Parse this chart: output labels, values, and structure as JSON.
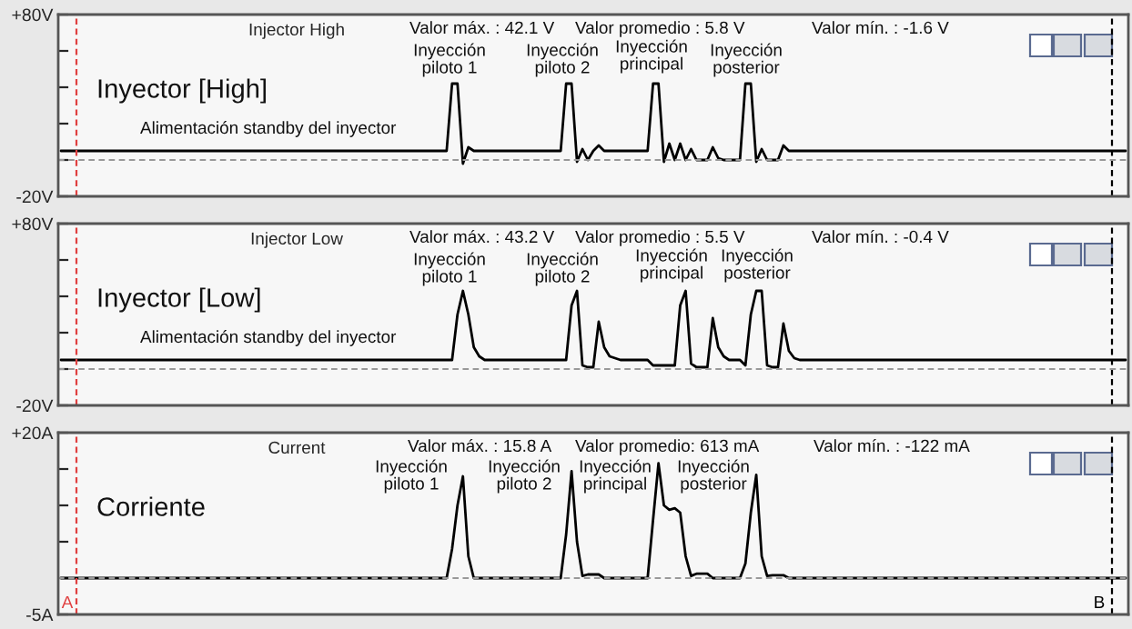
{
  "chart_data": [
    {
      "type": "line",
      "title": "Injector High",
      "annotations": [
        "Inyector [High]",
        "Alimentación standby del inyector",
        "Valor máx. : 42.1 V",
        "Valor promedio : 5.8 V",
        "Valor mín. : -1.6 V",
        "Inyección\npiloto 1",
        "Inyección\npiloto 2",
        "Inyección\nprincipal",
        "Inyección\nposterior"
      ],
      "categories": [
        null,
        null,
        null,
        null,
        null,
        null,
        null,
        null,
        null,
        null,
        null,
        null,
        null,
        null,
        null,
        null,
        null,
        null,
        null,
        null,
        null,
        null,
        null,
        null,
        null,
        null,
        null,
        null,
        null,
        null,
        null,
        null,
        null,
        null,
        null,
        null,
        null,
        null,
        null,
        null,
        null,
        null,
        null,
        null,
        null,
        null,
        null,
        null,
        null,
        null,
        null,
        null,
        null,
        null,
        null,
        null,
        null,
        null,
        null,
        null,
        null,
        null,
        null,
        null,
        null,
        null,
        null,
        null,
        null,
        null,
        null,
        null,
        null,
        null,
        null,
        null,
        null,
        null,
        null,
        null,
        null,
        null,
        null,
        null,
        null,
        null,
        null,
        null,
        null,
        null,
        null,
        null,
        null,
        null,
        null,
        null,
        null,
        null,
        null,
        null,
        null,
        null,
        null,
        null,
        null,
        null,
        null,
        null,
        null,
        null,
        null,
        null,
        null,
        null,
        null,
        null,
        null,
        null,
        null,
        null,
        null,
        null,
        null,
        null,
        null,
        null,
        null,
        null,
        null,
        null,
        null,
        null,
        null,
        null,
        null,
        null,
        null,
        null,
        null,
        null,
        null,
        null,
        null,
        null,
        null,
        null,
        null,
        null,
        null,
        null,
        null,
        null,
        null,
        null,
        null,
        null,
        null,
        null,
        null,
        null,
        null,
        null,
        null,
        null,
        null,
        null,
        null,
        null,
        null,
        null,
        null,
        null,
        null,
        null,
        null,
        null,
        null,
        null,
        null,
        null,
        null,
        null,
        null,
        null,
        null,
        null,
        null,
        null,
        null,
        null,
        null,
        null,
        null,
        null,
        null,
        null,
        null
      ],
      "series": [
        {
          "color": "#000000",
          "values": [
            5,
            5,
            5,
            5,
            5,
            5,
            5,
            5,
            5,
            5,
            5,
            5,
            5,
            5,
            5,
            5,
            5,
            5,
            5,
            5,
            5,
            5,
            5,
            5,
            5,
            5,
            5,
            5,
            5,
            5,
            5,
            5,
            5,
            5,
            5,
            5,
            5,
            5,
            5,
            5,
            5,
            5,
            5,
            5,
            5,
            5,
            5,
            5,
            5,
            5,
            5,
            5,
            5,
            5,
            5,
            5,
            5,
            5,
            5,
            5,
            5,
            5,
            5,
            5,
            5,
            5,
            5,
            5,
            5,
            5,
            5,
            5,
            42,
            42,
            -2,
            7,
            5,
            5,
            5,
            5,
            5,
            5,
            5,
            5,
            5,
            5,
            5,
            5,
            5,
            5,
            5,
            5,
            5,
            42,
            42,
            -1,
            6,
            0,
            5,
            8,
            5,
            5,
            5,
            5,
            5,
            5,
            5,
            5,
            5,
            42,
            42,
            -1,
            9,
            0,
            9,
            0,
            6,
            0,
            0,
            0,
            7,
            1,
            0,
            0,
            0,
            0,
            42,
            42,
            -1,
            6,
            0,
            0,
            0,
            8,
            5,
            5,
            5,
            5,
            5,
            5,
            5,
            5,
            5,
            5,
            5,
            5,
            5,
            5,
            5,
            5,
            5,
            5,
            5,
            5,
            5,
            5,
            5,
            5,
            5,
            5,
            5,
            5,
            5,
            5,
            5,
            5,
            5,
            5,
            5,
            5,
            5,
            5,
            5,
            5,
            5,
            5,
            5,
            5,
            5,
            5,
            5,
            5,
            5,
            5,
            5,
            5,
            5,
            5,
            5,
            5,
            5,
            5,
            5,
            5,
            5,
            5,
            5
          ]
        }
      ],
      "ylim": [
        -20,
        80
      ],
      "yticks": [
        {
          "value": 80,
          "label": "+80V"
        },
        {
          "value": 60,
          "label": null
        },
        {
          "value": 40,
          "label": null
        },
        {
          "value": 20,
          "label": null
        },
        {
          "value": 0,
          "label": null
        },
        {
          "value": -20,
          "label": "-20V"
        }
      ],
      "tick_labels": "y",
      "ref_lines": [
        {
          "axis": "y",
          "value": 0,
          "color": "#999999",
          "line_style": "dashed"
        }
      ]
    },
    {
      "type": "line",
      "title": "Injector Low",
      "annotations": [
        "Inyector [Low]",
        "Alimentación standby del inyector",
        "Valor máx. : 43.2 V",
        "Valor promedio : 5.5 V",
        "Valor mín. : -0.4 V",
        "Inyección\npiloto 1",
        "Inyección\npiloto 2",
        "Inyección\nprincipal",
        "Inyección\nposterior"
      ],
      "categories": [
        null,
        null,
        null,
        null,
        null,
        null,
        null,
        null,
        null,
        null,
        null,
        null,
        null,
        null,
        null,
        null,
        null,
        null,
        null,
        null,
        null,
        null,
        null,
        null,
        null,
        null,
        null,
        null,
        null,
        null,
        null,
        null,
        null,
        null,
        null,
        null,
        null,
        null,
        null,
        null,
        null,
        null,
        null,
        null,
        null,
        null,
        null,
        null,
        null,
        null,
        null,
        null,
        null,
        null,
        null,
        null,
        null,
        null,
        null,
        null,
        null,
        null,
        null,
        null,
        null,
        null,
        null,
        null,
        null,
        null,
        null,
        null,
        null,
        null,
        null,
        null,
        null,
        null,
        null,
        null,
        null,
        null,
        null,
        null,
        null,
        null,
        null,
        null,
        null,
        null,
        null,
        null,
        null,
        null,
        null,
        null,
        null,
        null,
        null,
        null,
        null,
        null,
        null,
        null,
        null,
        null,
        null,
        null,
        null,
        null,
        null,
        null,
        null,
        null,
        null,
        null,
        null,
        null,
        null,
        null,
        null,
        null,
        null,
        null,
        null,
        null,
        null,
        null,
        null,
        null,
        null,
        null,
        null,
        null,
        null,
        null,
        null,
        null,
        null,
        null,
        null,
        null,
        null,
        null,
        null,
        null,
        null,
        null,
        null,
        null,
        null,
        null,
        null,
        null,
        null,
        null,
        null,
        null,
        null,
        null,
        null,
        null,
        null,
        null,
        null,
        null,
        null,
        null,
        null,
        null,
        null,
        null,
        null,
        null,
        null,
        null,
        null,
        null,
        null,
        null,
        null,
        null,
        null,
        null,
        null,
        null,
        null,
        null,
        null,
        null,
        null,
        null,
        null,
        null,
        null,
        null,
        null
      ],
      "series": [
        {
          "color": "#000000",
          "values": [
            5,
            5,
            5,
            5,
            5,
            5,
            5,
            5,
            5,
            5,
            5,
            5,
            5,
            5,
            5,
            5,
            5,
            5,
            5,
            5,
            5,
            5,
            5,
            5,
            5,
            5,
            5,
            5,
            5,
            5,
            5,
            5,
            5,
            5,
            5,
            5,
            5,
            5,
            5,
            5,
            5,
            5,
            5,
            5,
            5,
            5,
            5,
            5,
            5,
            5,
            5,
            5,
            5,
            5,
            5,
            5,
            5,
            5,
            5,
            5,
            5,
            5,
            5,
            5,
            5,
            5,
            5,
            5,
            5,
            5,
            5,
            5,
            5,
            30,
            43,
            30,
            12,
            7,
            5,
            5,
            5,
            5,
            5,
            5,
            5,
            5,
            5,
            5,
            5,
            5,
            5,
            5,
            5,
            5,
            35,
            43,
            2,
            1,
            1,
            26,
            12,
            7,
            6,
            5,
            5,
            5,
            5,
            5,
            5,
            2,
            2,
            2,
            2,
            2,
            35,
            43,
            3,
            1,
            1,
            1,
            28,
            12,
            7,
            5,
            5,
            5,
            2,
            30,
            43,
            43,
            2,
            1,
            1,
            25,
            10,
            6,
            5,
            5,
            5,
            5,
            5,
            5,
            5,
            5,
            5,
            5,
            5,
            5,
            5,
            5,
            5,
            5,
            5,
            5,
            5,
            5,
            5,
            5,
            5,
            5,
            5,
            5,
            5,
            5,
            5,
            5,
            5,
            5,
            5,
            5,
            5,
            5,
            5,
            5,
            5,
            5,
            5,
            5,
            5,
            5,
            5,
            5,
            5,
            5,
            5,
            5,
            5,
            5,
            5,
            5,
            5,
            5,
            5,
            5,
            5,
            5,
            5
          ]
        }
      ],
      "ylim": [
        -20,
        80
      ],
      "yticks": [
        {
          "value": 80,
          "label": "+80V"
        },
        {
          "value": 60,
          "label": null
        },
        {
          "value": 40,
          "label": null
        },
        {
          "value": 20,
          "label": null
        },
        {
          "value": 0,
          "label": null
        },
        {
          "value": -20,
          "label": "-20V"
        }
      ],
      "tick_labels": "y",
      "ref_lines": [
        {
          "axis": "y",
          "value": 0,
          "color": "#999999",
          "line_style": "dashed"
        }
      ]
    },
    {
      "type": "line",
      "title": "Current",
      "annotations": [
        "Corriente",
        "Valor máx. : 15.8 A",
        "Valor promedio: 613 mA",
        "Valor mín. : -122 mA",
        "Inyección\npiloto 1",
        "Inyección\npiloto 2",
        "Inyección\nprincipal",
        "Inyección\nposterior",
        "A",
        "B"
      ],
      "categories": [
        null,
        null,
        null,
        null,
        null,
        null,
        null,
        null,
        null,
        null,
        null,
        null,
        null,
        null,
        null,
        null,
        null,
        null,
        null,
        null,
        null,
        null,
        null,
        null,
        null,
        null,
        null,
        null,
        null,
        null,
        null,
        null,
        null,
        null,
        null,
        null,
        null,
        null,
        null,
        null,
        null,
        null,
        null,
        null,
        null,
        null,
        null,
        null,
        null,
        null,
        null,
        null,
        null,
        null,
        null,
        null,
        null,
        null,
        null,
        null,
        null,
        null,
        null,
        null,
        null,
        null,
        null,
        null,
        null,
        null,
        null,
        null,
        null,
        null,
        null,
        null,
        null,
        null,
        null,
        null,
        null,
        null,
        null,
        null,
        null,
        null,
        null,
        null,
        null,
        null,
        null,
        null,
        null,
        null,
        null,
        null,
        null,
        null,
        null,
        null,
        null,
        null,
        null,
        null,
        null,
        null,
        null,
        null,
        null,
        null,
        null,
        null,
        null,
        null,
        null,
        null,
        null,
        null,
        null,
        null,
        null,
        null,
        null,
        null,
        null,
        null,
        null,
        null,
        null,
        null,
        null,
        null,
        null,
        null,
        null,
        null,
        null,
        null,
        null,
        null,
        null,
        null,
        null,
        null,
        null,
        null,
        null,
        null,
        null,
        null,
        null,
        null,
        null,
        null,
        null,
        null,
        null,
        null,
        null,
        null,
        null,
        null,
        null,
        null,
        null,
        null,
        null,
        null,
        null,
        null,
        null,
        null,
        null,
        null,
        null,
        null,
        null,
        null,
        null,
        null,
        null,
        null,
        null,
        null,
        null,
        null,
        null,
        null,
        null,
        null,
        null,
        null,
        null,
        null,
        null,
        null,
        null
      ],
      "series": [
        {
          "color": "#000000",
          "values": [
            0,
            0,
            0,
            0,
            0,
            0,
            0,
            0,
            0,
            0,
            0,
            0,
            0,
            0,
            0,
            0,
            0,
            0,
            0,
            0,
            0,
            0,
            0,
            0,
            0,
            0,
            0,
            0,
            0,
            0,
            0,
            0,
            0,
            0,
            0,
            0,
            0,
            0,
            0,
            0,
            0,
            0,
            0,
            0,
            0,
            0,
            0,
            0,
            0,
            0,
            0,
            0,
            0,
            0,
            0,
            0,
            0,
            0,
            0,
            0,
            0,
            0,
            0,
            0,
            0,
            0,
            0,
            0,
            0,
            0,
            0,
            0,
            4,
            10,
            14,
            3,
            0,
            0,
            0,
            0,
            0,
            0,
            0,
            0,
            0,
            0,
            0,
            0,
            0,
            0,
            0,
            0,
            0,
            6,
            14.7,
            5,
            0.3,
            0.5,
            0.5,
            0.5,
            0,
            0,
            0,
            0,
            0,
            0,
            0,
            0,
            0,
            8,
            15.8,
            10,
            9.4,
            9.6,
            9,
            3,
            0.3,
            0.6,
            0.6,
            0.6,
            0,
            0,
            0,
            0,
            0,
            0,
            2,
            9,
            14.2,
            3,
            0.3,
            0.4,
            0.4,
            0.4,
            0,
            0,
            0,
            0,
            0,
            0,
            0,
            0,
            0,
            0,
            0,
            0,
            0,
            0,
            0,
            0,
            0,
            0,
            0,
            0,
            0,
            0,
            0,
            0,
            0,
            0,
            0,
            0,
            0,
            0,
            0,
            0,
            0,
            0,
            0,
            0,
            0,
            0,
            0,
            0,
            0,
            0,
            0,
            0,
            0,
            0,
            0,
            0,
            0,
            0,
            0,
            0,
            0,
            0,
            0,
            0,
            0,
            0,
            0,
            0,
            0,
            0,
            0
          ]
        }
      ],
      "ylim": [
        -5,
        20
      ],
      "yticks": [
        {
          "value": 20,
          "label": "+20A"
        },
        {
          "value": 15,
          "label": null
        },
        {
          "value": 10,
          "label": null
        },
        {
          "value": 5,
          "label": null
        },
        {
          "value": 0,
          "label": null
        },
        {
          "value": -5,
          "label": "-5A"
        }
      ],
      "tick_labels": "y",
      "ref_lines": [
        {
          "axis": "y",
          "value": 0,
          "color": "#999999",
          "line_style": "dashed"
        }
      ]
    }
  ]
}
